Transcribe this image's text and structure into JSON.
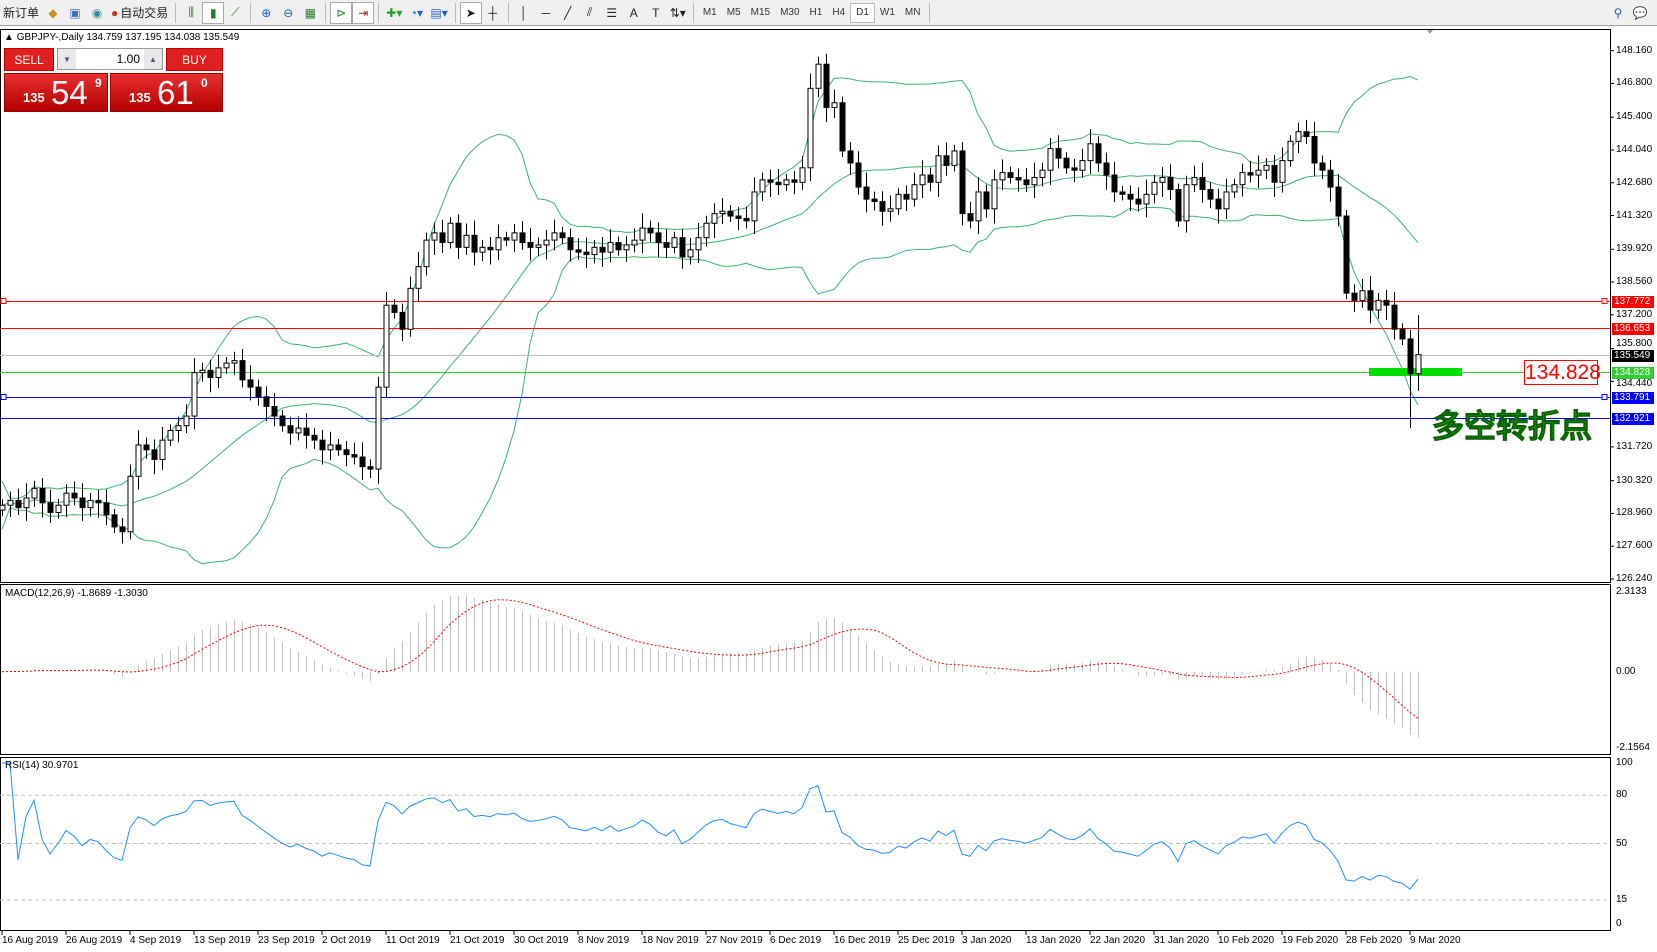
{
  "toolbar": {
    "new_order": "新订单",
    "auto_trading": "自动交易",
    "timeframes": [
      "M1",
      "M5",
      "M15",
      "M30",
      "H1",
      "H4",
      "D1",
      "W1",
      "MN"
    ],
    "active_timeframe": "D1",
    "icons": [
      "gold-bars-icon",
      "navigator-icon",
      "signal-icon",
      "auto-trading-icon",
      "bar-chart-icon",
      "candlestick-icon",
      "line-chart-icon",
      "zoom-in-icon",
      "zoom-out-icon",
      "tile-windows-icon",
      "chart-shift-icon",
      "autoscroll-icon",
      "add-indicator-icon",
      "periods-clock-icon",
      "templates-icon",
      "cursor-icon",
      "crosshair-icon",
      "vertical-line-icon",
      "horizontal-line-icon",
      "trendline-icon",
      "equidistant-channel-icon",
      "fibonacci-icon",
      "text-icon",
      "text-label-icon",
      "arrows-icon",
      "search-icon",
      "chat-icon"
    ]
  },
  "chart": {
    "header": "GBPJPY-,Daily  134.759 137.195 134.038 135.549",
    "trade_panel": {
      "sell": "SELL",
      "buy": "BUY",
      "lot": "1.00",
      "sell_price": {
        "prefix": "135",
        "big": "54",
        "sup": "9"
      },
      "buy_price": {
        "prefix": "135",
        "big": "61",
        "sup": "0"
      }
    },
    "price_ticks": [
      "148.160",
      "146.800",
      "145.400",
      "144.040",
      "142.680",
      "141.320",
      "139.920",
      "138.560",
      "137.200",
      "135.800",
      "134.440",
      "131.720",
      "130.320",
      "128.960",
      "127.600",
      "126.240"
    ],
    "horizontal_lines": [
      {
        "price": 137.772,
        "label": "137.772",
        "color": "#ff0000"
      },
      {
        "price": 136.653,
        "label": "136.653",
        "color": "#ff0000"
      },
      {
        "price": 135.549,
        "label": "135.549",
        "color": "#c0c0c0",
        "label_bg": "#000000"
      },
      {
        "price": 134.828,
        "label": "134.828",
        "color": "#32cd32"
      },
      {
        "price": 133.791,
        "label": "133.791",
        "color": "#0000ff"
      },
      {
        "price": 132.921,
        "label": "132.921",
        "color": "#0000ff"
      }
    ],
    "annotation_price": "134.828",
    "annotation_text": "多空转折点",
    "x_labels": [
      "16 Aug 2019",
      "26 Aug 2019",
      "4 Sep 2019",
      "13 Sep 2019",
      "23 Sep 2019",
      "2 Oct 2019",
      "11 Oct 2019",
      "21 Oct 2019",
      "30 Oct 2019",
      "8 Nov 2019",
      "18 Nov 2019",
      "27 Nov 2019",
      "6 Dec 2019",
      "16 Dec 2019",
      "25 Dec 2019",
      "3 Jan 2020",
      "13 Jan 2020",
      "22 Jan 2020",
      "31 Jan 2020",
      "10 Feb 2020",
      "19 Feb 2020",
      "28 Feb 2020",
      "9 Mar 2020"
    ],
    "last_bar": {
      "open": 134.759,
      "high": 137.195,
      "low": 134.038,
      "close": 135.549
    },
    "closes": [
      129.3,
      129.5,
      129.2,
      129.6,
      130.0,
      129.4,
      129.0,
      129.3,
      129.8,
      129.6,
      129.2,
      129.5,
      129.4,
      128.9,
      128.4,
      128.2,
      130.5,
      131.8,
      131.6,
      131.2,
      132.0,
      132.4,
      132.6,
      133.0,
      134.8,
      134.9,
      134.6,
      135.0,
      135.2,
      135.3,
      134.5,
      134.2,
      133.8,
      133.4,
      133.0,
      132.6,
      132.3,
      132.5,
      132.2,
      132.0,
      131.6,
      131.8,
      131.6,
      131.4,
      131.3,
      130.9,
      130.8,
      134.2,
      137.6,
      137.3,
      136.6,
      138.3,
      139.2,
      140.3,
      140.6,
      140.2,
      141.0,
      140.0,
      140.5,
      139.8,
      140.0,
      139.9,
      140.4,
      140.3,
      140.6,
      140.2,
      140.0,
      140.1,
      140.3,
      140.6,
      140.4,
      139.9,
      139.8,
      139.7,
      140.0,
      139.8,
      140.2,
      139.9,
      140.1,
      140.3,
      140.8,
      140.6,
      140.2,
      140.0,
      140.4,
      139.6,
      139.9,
      140.4,
      141.0,
      141.4,
      141.5,
      141.3,
      141.2,
      141.1,
      142.3,
      142.8,
      142.7,
      142.6,
      142.8,
      142.7,
      143.3,
      146.6,
      147.6,
      145.8,
      146.0,
      144.0,
      143.5,
      142.5,
      142.0,
      141.9,
      141.5,
      141.6,
      142.2,
      142.0,
      142.6,
      143.0,
      142.7,
      143.8,
      143.4,
      144.0,
      141.4,
      141.1,
      142.3,
      141.6,
      142.8,
      143.1,
      142.9,
      142.8,
      142.6,
      142.9,
      143.2,
      144.1,
      143.7,
      143.3,
      143.2,
      143.6,
      144.3,
      143.5,
      143.0,
      142.3,
      142.2,
      142.0,
      141.8,
      142.2,
      142.7,
      142.9,
      142.4,
      141.1,
      142.6,
      142.9,
      142.4,
      142.0,
      141.6,
      142.3,
      142.6,
      143.1,
      143.0,
      143.2,
      143.4,
      142.7,
      143.6,
      144.4,
      144.8,
      144.6,
      143.5,
      143.2,
      142.5,
      141.3,
      138.1,
      137.8,
      138.2,
      137.4,
      137.8,
      137.6,
      136.6,
      136.2,
      134.759,
      135.549
    ],
    "bollinger_color": "#3cb371"
  },
  "macd": {
    "label": "MACD(12,26,9) -1.8689 -1.3030",
    "ticks": [
      "2.3133",
      "0.00",
      "-2.1564"
    ],
    "range": [
      -2.1564,
      2.3133
    ],
    "signal_color": "#ff0000",
    "hist_color": "#c0c0c0"
  },
  "rsi": {
    "label": "RSI(14) 30.9701",
    "ticks": [
      "100",
      "80",
      "50",
      "15",
      "0"
    ],
    "levels": [
      80,
      50,
      15
    ],
    "color": "#1e90ff"
  }
}
